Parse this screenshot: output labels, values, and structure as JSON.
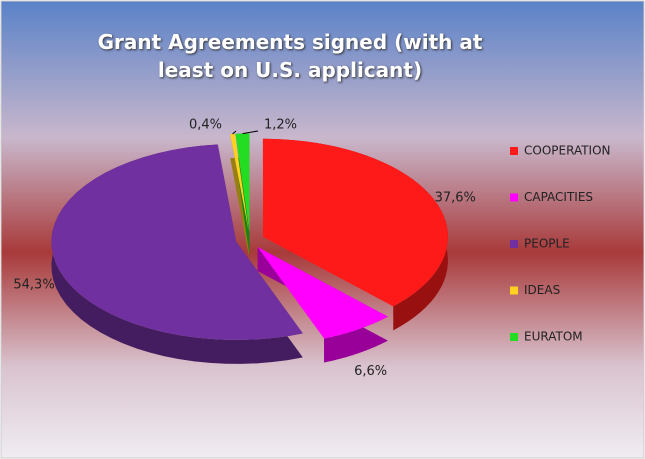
{
  "chart_data": {
    "type": "pie",
    "title": "Grant Agreements signed (with at least on U.S. applicant)",
    "categories": [
      "COOPERATION",
      "CAPACITIES",
      "PEOPLE",
      "IDEAS",
      "EURATOM"
    ],
    "values": [
      37.6,
      6.6,
      54.3,
      0.4,
      1.2
    ],
    "value_labels": [
      "37,6%",
      "6,6%",
      "54,3%",
      "0,4%",
      "1,2%"
    ],
    "colors": [
      "#ff1a1a",
      "#ff00ff",
      "#7030a0",
      "#ffd21f",
      "#22dd22"
    ],
    "legend": "right"
  }
}
